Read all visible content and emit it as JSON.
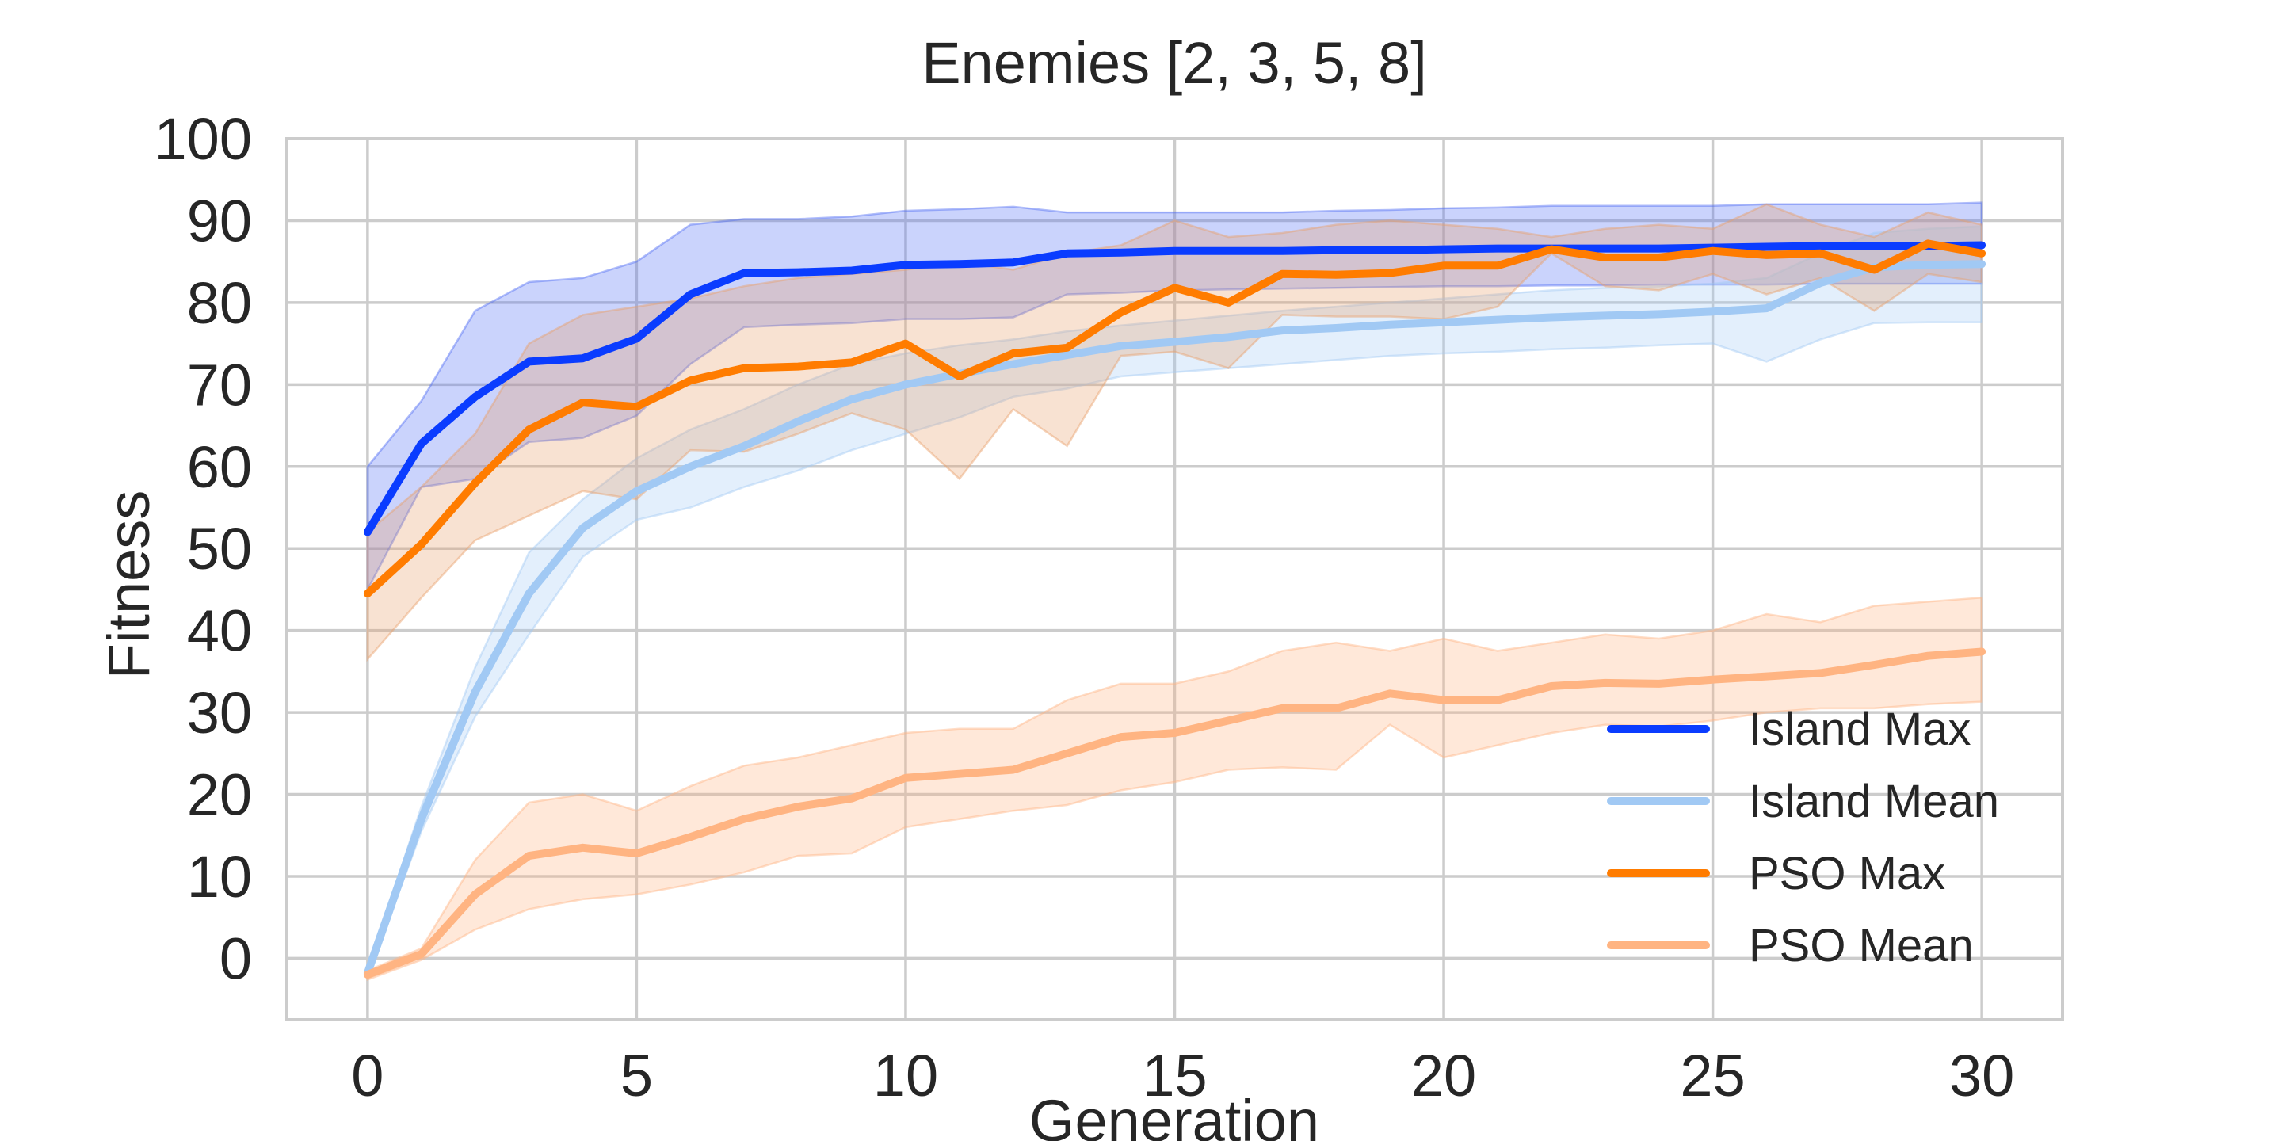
{
  "chart_data": {
    "type": "line",
    "title": "Enemies [2, 3, 5, 8]",
    "xlabel": "Generation",
    "ylabel": "Fitness",
    "xlim": [
      -1.5,
      31.5
    ],
    "ylim": [
      -7.5,
      100
    ],
    "x_ticks": [
      0,
      5,
      10,
      15,
      20,
      25,
      30
    ],
    "y_ticks": [
      0,
      10,
      20,
      30,
      40,
      50,
      60,
      70,
      80,
      90,
      100
    ],
    "grid": true,
    "legend_position": "lower-right",
    "x": [
      0,
      1,
      2,
      3,
      4,
      5,
      6,
      7,
      8,
      9,
      10,
      11,
      12,
      13,
      14,
      15,
      16,
      17,
      18,
      19,
      20,
      21,
      22,
      23,
      24,
      25,
      26,
      27,
      28,
      29,
      30
    ],
    "series": [
      {
        "name": "Island Max",
        "color": "#0a3cff",
        "band_color": "#4f6cf5",
        "values": [
          52,
          62.8,
          68.5,
          72.8,
          73.2,
          75.6,
          81,
          83.6,
          83.7,
          83.9,
          84.6,
          84.7,
          84.9,
          86,
          86.1,
          86.3,
          86.3,
          86.3,
          86.4,
          86.4,
          86.5,
          86.6,
          86.6,
          86.6,
          86.6,
          86.7,
          86.8,
          86.9,
          86.9,
          86.9,
          87
        ],
        "upper": [
          60,
          68,
          79,
          82.5,
          83,
          85,
          89.5,
          90.2,
          90.2,
          90.5,
          91.2,
          91.4,
          91.7,
          91,
          91,
          91,
          91,
          91,
          91.2,
          91.3,
          91.5,
          91.6,
          91.8,
          91.8,
          91.8,
          91.8,
          92,
          92,
          92,
          92,
          92.2
        ],
        "lower": [
          45,
          57.5,
          58.5,
          63,
          63.5,
          66.2,
          72.5,
          77,
          77.3,
          77.5,
          78,
          78,
          78.2,
          81,
          81.2,
          81.5,
          81.6,
          81.7,
          81.8,
          81.9,
          82,
          82,
          82.1,
          82.1,
          82.2,
          82.2,
          82.2,
          82.3,
          82.3,
          82.3,
          82.3
        ]
      },
      {
        "name": "Island Mean",
        "color": "#a1c9f4",
        "band_color": "#a1c9f4",
        "values": [
          -1.8,
          17,
          32.5,
          44.5,
          52.5,
          57,
          60,
          62.5,
          65.5,
          68.2,
          70,
          71.3,
          72.5,
          73.6,
          74.7,
          75.2,
          75.8,
          76.6,
          76.9,
          77.3,
          77.6,
          77.9,
          78.2,
          78.4,
          78.6,
          78.9,
          79.3,
          82.4,
          84.3,
          84.6,
          84.7
        ],
        "upper": [
          -1.3,
          18.5,
          35.5,
          49.5,
          56,
          61,
          64.5,
          67,
          70,
          72.5,
          73.8,
          74.8,
          75.5,
          76.5,
          77.2,
          77.8,
          78.4,
          79,
          79.5,
          80,
          80.5,
          81,
          81.5,
          81.8,
          82,
          82.3,
          83,
          86,
          88.5,
          89,
          89.3
        ],
        "lower": [
          -2.3,
          15.5,
          29.5,
          39.5,
          49,
          53.5,
          55,
          57.5,
          59.5,
          62,
          64,
          66,
          68.5,
          69.5,
          71,
          71.5,
          72,
          72.5,
          73,
          73.5,
          73.8,
          74,
          74.3,
          74.5,
          74.8,
          75,
          72.8,
          75.5,
          77.5,
          77.6,
          77.6
        ]
      },
      {
        "name": "PSO Max",
        "color": "#ff7c00",
        "band_color": "#e8a06a",
        "values": [
          44.5,
          50.5,
          58,
          64.5,
          67.8,
          67.3,
          70.5,
          72,
          72.2,
          72.7,
          75,
          71,
          73.8,
          74.5,
          78.8,
          81.8,
          80,
          83.5,
          83.4,
          83.6,
          84.5,
          84.5,
          86.5,
          85.5,
          85.5,
          86.3,
          85.8,
          86,
          84,
          87.2,
          86
        ],
        "upper": [
          52,
          57.5,
          64,
          75,
          78.5,
          79.5,
          80.5,
          82,
          83,
          83.5,
          84,
          85,
          84,
          86,
          87,
          90,
          88,
          88.5,
          89.5,
          90,
          89.5,
          89,
          88,
          89,
          89.5,
          89,
          92,
          89.5,
          88,
          91,
          89.5
        ],
        "lower": [
          36.5,
          44,
          51,
          54,
          57,
          56,
          62,
          61.8,
          64,
          66.5,
          64.5,
          58.5,
          67,
          62.5,
          73.5,
          74,
          72,
          78.5,
          78.3,
          78.3,
          78,
          79.5,
          86,
          82,
          81.5,
          83.5,
          81,
          83,
          79,
          83.5,
          82.5
        ]
      },
      {
        "name": "PSO Mean",
        "color": "#ffb482",
        "band_color": "#ffb482",
        "values": [
          -2,
          0.5,
          7.8,
          12.5,
          13.5,
          12.8,
          14.8,
          17,
          18.5,
          19.5,
          22,
          22.5,
          23,
          25,
          27,
          27.5,
          29,
          30.5,
          30.5,
          32.3,
          31.5,
          31.5,
          33.2,
          33.6,
          33.5,
          34,
          34.4,
          34.8,
          35.8,
          36.9,
          37.4
        ],
        "upper": [
          -1.5,
          1.2,
          12,
          19,
          20,
          18,
          21,
          23.5,
          24.5,
          26,
          27.5,
          28,
          28,
          31.5,
          33.5,
          33.5,
          35,
          37.5,
          38.5,
          37.5,
          39,
          37.5,
          38.5,
          39.5,
          39,
          40,
          42,
          41,
          43,
          43.5,
          44
        ],
        "lower": [
          -2.6,
          -0.2,
          3.5,
          6,
          7.2,
          7.8,
          9,
          10.5,
          12.5,
          12.8,
          16,
          17,
          18,
          18.7,
          20.5,
          21.5,
          23,
          23.3,
          23,
          28.5,
          24.5,
          26,
          27.5,
          28.5,
          28.3,
          29,
          30,
          30.5,
          30.5,
          31,
          31.3
        ]
      }
    ]
  }
}
